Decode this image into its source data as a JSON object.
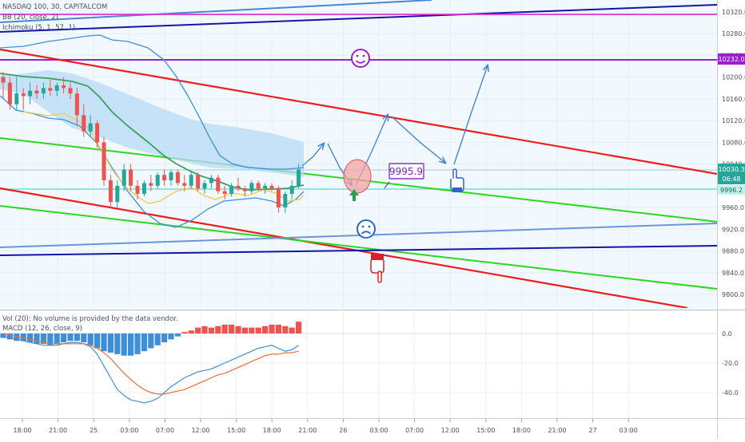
{
  "colors": {
    "price_pane_bg": "#f2f9fe",
    "up_candle": "#26a69a",
    "down_candle": "#ef5350",
    "bb_basis": "#3aa05a",
    "bb_band": "#3b8fe0",
    "cloud_fill": "#b5d9f5",
    "ichimoku_line": "#f2c94c",
    "red_channel": "#ee1c1c",
    "green_channel": "#29d81d",
    "blue_line": "#1414a8",
    "purple_level": "#9b1fd0",
    "magenta_line": "#dd33cc",
    "cyan_line": "#67e6d8",
    "drawing_blue": "#3d7fd8",
    "macd_line": "#3f8fd8",
    "signal_line": "#f06b3a",
    "hist_up": "#ef5350",
    "hist_down": "#3f8fd8"
  },
  "header": {
    "symbol": "NASDAQ 100, 30, CAPITALCOM",
    "indicator_1": "BB (20, close, 2)",
    "indicator_2": "Ichimoku (5, 1, 57, 1)"
  },
  "sub_pane": {
    "vol_label": "Vol (20): No volume is provided by the data vendor.",
    "macd_label": "MACD (12, 26, close, 9)"
  },
  "price_axis": {
    "ticks": [
      "10320.0",
      "10280.0",
      "10240.0",
      "10200.0",
      "10160.0",
      "10120.0",
      "10080.0",
      "10040.0",
      "9960.0",
      "9920.0",
      "9880.0",
      "9840.0",
      "9800.0"
    ],
    "level_label": "10232.0",
    "last_price": "10030.3",
    "countdown": "06:48",
    "marker_price": "9996.2"
  },
  "macd_axis": {
    "ticks": [
      "0.0",
      "-20.0",
      "-40.0"
    ]
  },
  "time_axis": {
    "labels": [
      "18:00",
      "21:00",
      "25",
      "03:00",
      "07:00",
      "12:00",
      "15:00",
      "18:00",
      "21:00",
      "26",
      "03:00",
      "07:00",
      "12:00",
      "15:00",
      "18:00",
      "21:00",
      "27",
      "03:00"
    ]
  },
  "annotations": {
    "price_box": "9995.9",
    "smile_icon": "smiling-face",
    "sad_icon": "frowning-face",
    "hand_up_icon": "pointing-hand",
    "hand_down_icon": "pointing-hand-down"
  },
  "chart_data": [
    {
      "type": "candlestick",
      "title": "NASDAQ 100, 30, CAPITALCOM",
      "ylim": [
        9780,
        10350
      ],
      "candles": [
        [
          10200,
          10210,
          10160,
          10190
        ],
        [
          10190,
          10200,
          10140,
          10150
        ],
        [
          10150,
          10200,
          10140,
          10170
        ],
        [
          10170,
          10180,
          10140,
          10165
        ],
        [
          10165,
          10190,
          10150,
          10175
        ],
        [
          10175,
          10185,
          10160,
          10170
        ],
        [
          10170,
          10190,
          10160,
          10180
        ],
        [
          10180,
          10195,
          10165,
          10175
        ],
        [
          10175,
          10190,
          10165,
          10185
        ],
        [
          10185,
          10200,
          10170,
          10180
        ],
        [
          10180,
          10190,
          10160,
          10170
        ],
        [
          10170,
          10180,
          10110,
          10130
        ],
        [
          10130,
          10150,
          10090,
          10100
        ],
        [
          10100,
          10130,
          10090,
          10115
        ],
        [
          10115,
          10120,
          10070,
          10080
        ],
        [
          10080,
          10090,
          10000,
          10010
        ],
        [
          10010,
          10020,
          9960,
          9970
        ],
        [
          9970,
          10010,
          9960,
          10000
        ],
        [
          10000,
          10040,
          9990,
          10030
        ],
        [
          10030,
          10040,
          9990,
          10000
        ],
        [
          10000,
          10010,
          9975,
          9985
        ],
        [
          9985,
          10010,
          9980,
          10005
        ],
        [
          10005,
          10020,
          9990,
          10000
        ],
        [
          10000,
          10025,
          9995,
          10020
        ],
        [
          10020,
          10030,
          10000,
          10010
        ],
        [
          10010,
          10030,
          10000,
          10025
        ],
        [
          10025,
          10030,
          10000,
          10005
        ],
        [
          10005,
          10020,
          9990,
          10000
        ],
        [
          10000,
          10025,
          9995,
          10020
        ],
        [
          10020,
          10025,
          9990,
          9995
        ],
        [
          9995,
          10010,
          9985,
          10005
        ],
        [
          10005,
          10020,
          9995,
          10015
        ],
        [
          10015,
          10020,
          9985,
          9990
        ],
        [
          9990,
          10000,
          9975,
          9985
        ],
        [
          9985,
          10005,
          9980,
          10000
        ],
        [
          10000,
          10015,
          9990,
          9995
        ],
        [
          9995,
          10000,
          9980,
          9990
        ],
        [
          9990,
          10010,
          9985,
          10005
        ],
        [
          10005,
          10010,
          9990,
          9995
        ],
        [
          9995,
          10005,
          9985,
          10000
        ],
        [
          10000,
          10005,
          9990,
          9995
        ],
        [
          9995,
          10000,
          9950,
          9960
        ],
        [
          9960,
          9990,
          9950,
          9985
        ],
        [
          9985,
          10010,
          9975,
          10000
        ],
        [
          10000,
          10040,
          9995,
          10030
        ]
      ]
    },
    {
      "type": "bar",
      "title": "MACD (12, 26, close, 9)",
      "ylim": [
        -50,
        10
      ],
      "histogram": [
        -3,
        -4,
        -5,
        -5,
        -6,
        -7,
        -7,
        -8,
        -7,
        -6,
        -5,
        -5,
        -6,
        -8,
        -10,
        -12,
        -13,
        -14,
        -15,
        -15,
        -14,
        -12,
        -10,
        -8,
        -6,
        -4,
        -2,
        1,
        2,
        4,
        5,
        4,
        5,
        6,
        6,
        5,
        4,
        4,
        4,
        5,
        6,
        6,
        5,
        4,
        8
      ],
      "series": [
        {
          "name": "MACD",
          "values": [
            -2,
            -3,
            -4,
            -5,
            -6,
            -7,
            -8,
            -8,
            -8,
            -7,
            -6,
            -6,
            -7,
            -9,
            -14,
            -22,
            -30,
            -38,
            -42,
            -45,
            -46,
            -47,
            -46,
            -44,
            -40,
            -36,
            -33,
            -30,
            -28,
            -26,
            -25,
            -24,
            -22,
            -20,
            -18,
            -16,
            -14,
            -12,
            -10,
            -9,
            -8,
            -10,
            -12,
            -11,
            -8
          ]
        },
        {
          "name": "Signal",
          "values": [
            0,
            -1,
            -2,
            -3,
            -4,
            -5,
            -6,
            -7,
            -7,
            -7,
            -7,
            -7,
            -7,
            -8,
            -10,
            -13,
            -17,
            -22,
            -27,
            -31,
            -35,
            -38,
            -40,
            -41,
            -41,
            -40,
            -39,
            -38,
            -36,
            -34,
            -32,
            -30,
            -28,
            -27,
            -25,
            -23,
            -21,
            -19,
            -17,
            -15,
            -14,
            -14,
            -13,
            -13,
            -12
          ]
        }
      ]
    }
  ]
}
